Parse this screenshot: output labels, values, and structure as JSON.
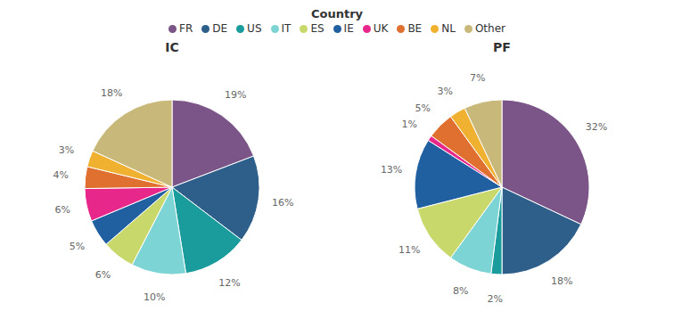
{
  "chart_data": [
    {
      "type": "pie",
      "title": "IC",
      "categories": [
        "FR",
        "DE",
        "US",
        "IT",
        "ES",
        "IE",
        "UK",
        "BE",
        "NL",
        "Other"
      ],
      "values": [
        19,
        16,
        12,
        10,
        6,
        5,
        6,
        4,
        3,
        18
      ],
      "value_labels": [
        "19%",
        "16%",
        "12%",
        "10%",
        "6%",
        "5%",
        "6%",
        "4%",
        "3%",
        "18%"
      ],
      "colors": [
        "#7b5587",
        "#2d5f8a",
        "#1a9c9c",
        "#7dd4d4",
        "#c8d86b",
        "#2060a0",
        "#e8278a",
        "#e07030",
        "#f0b030",
        "#c8b87a"
      ],
      "data_labels": true
    },
    {
      "type": "pie",
      "title": "PF",
      "categories": [
        "FR",
        "DE",
        "US",
        "IT",
        "ES",
        "IE",
        "UK",
        "BE",
        "NL",
        "Other"
      ],
      "values": [
        32,
        18,
        2,
        8,
        11,
        13,
        1,
        5,
        3,
        7
      ],
      "value_labels": [
        "32%",
        "18%",
        "2%",
        "8%",
        "11%",
        "13%",
        "1%",
        "5%",
        "3%",
        "7%"
      ],
      "colors": [
        "#7b5587",
        "#2d5f8a",
        "#1a9c9c",
        "#7dd4d4",
        "#c8d86b",
        "#2060a0",
        "#e8278a",
        "#e07030",
        "#f0b030",
        "#c8b87a"
      ],
      "data_labels": true
    }
  ],
  "legend": "top",
  "legend_title": "Country"
}
